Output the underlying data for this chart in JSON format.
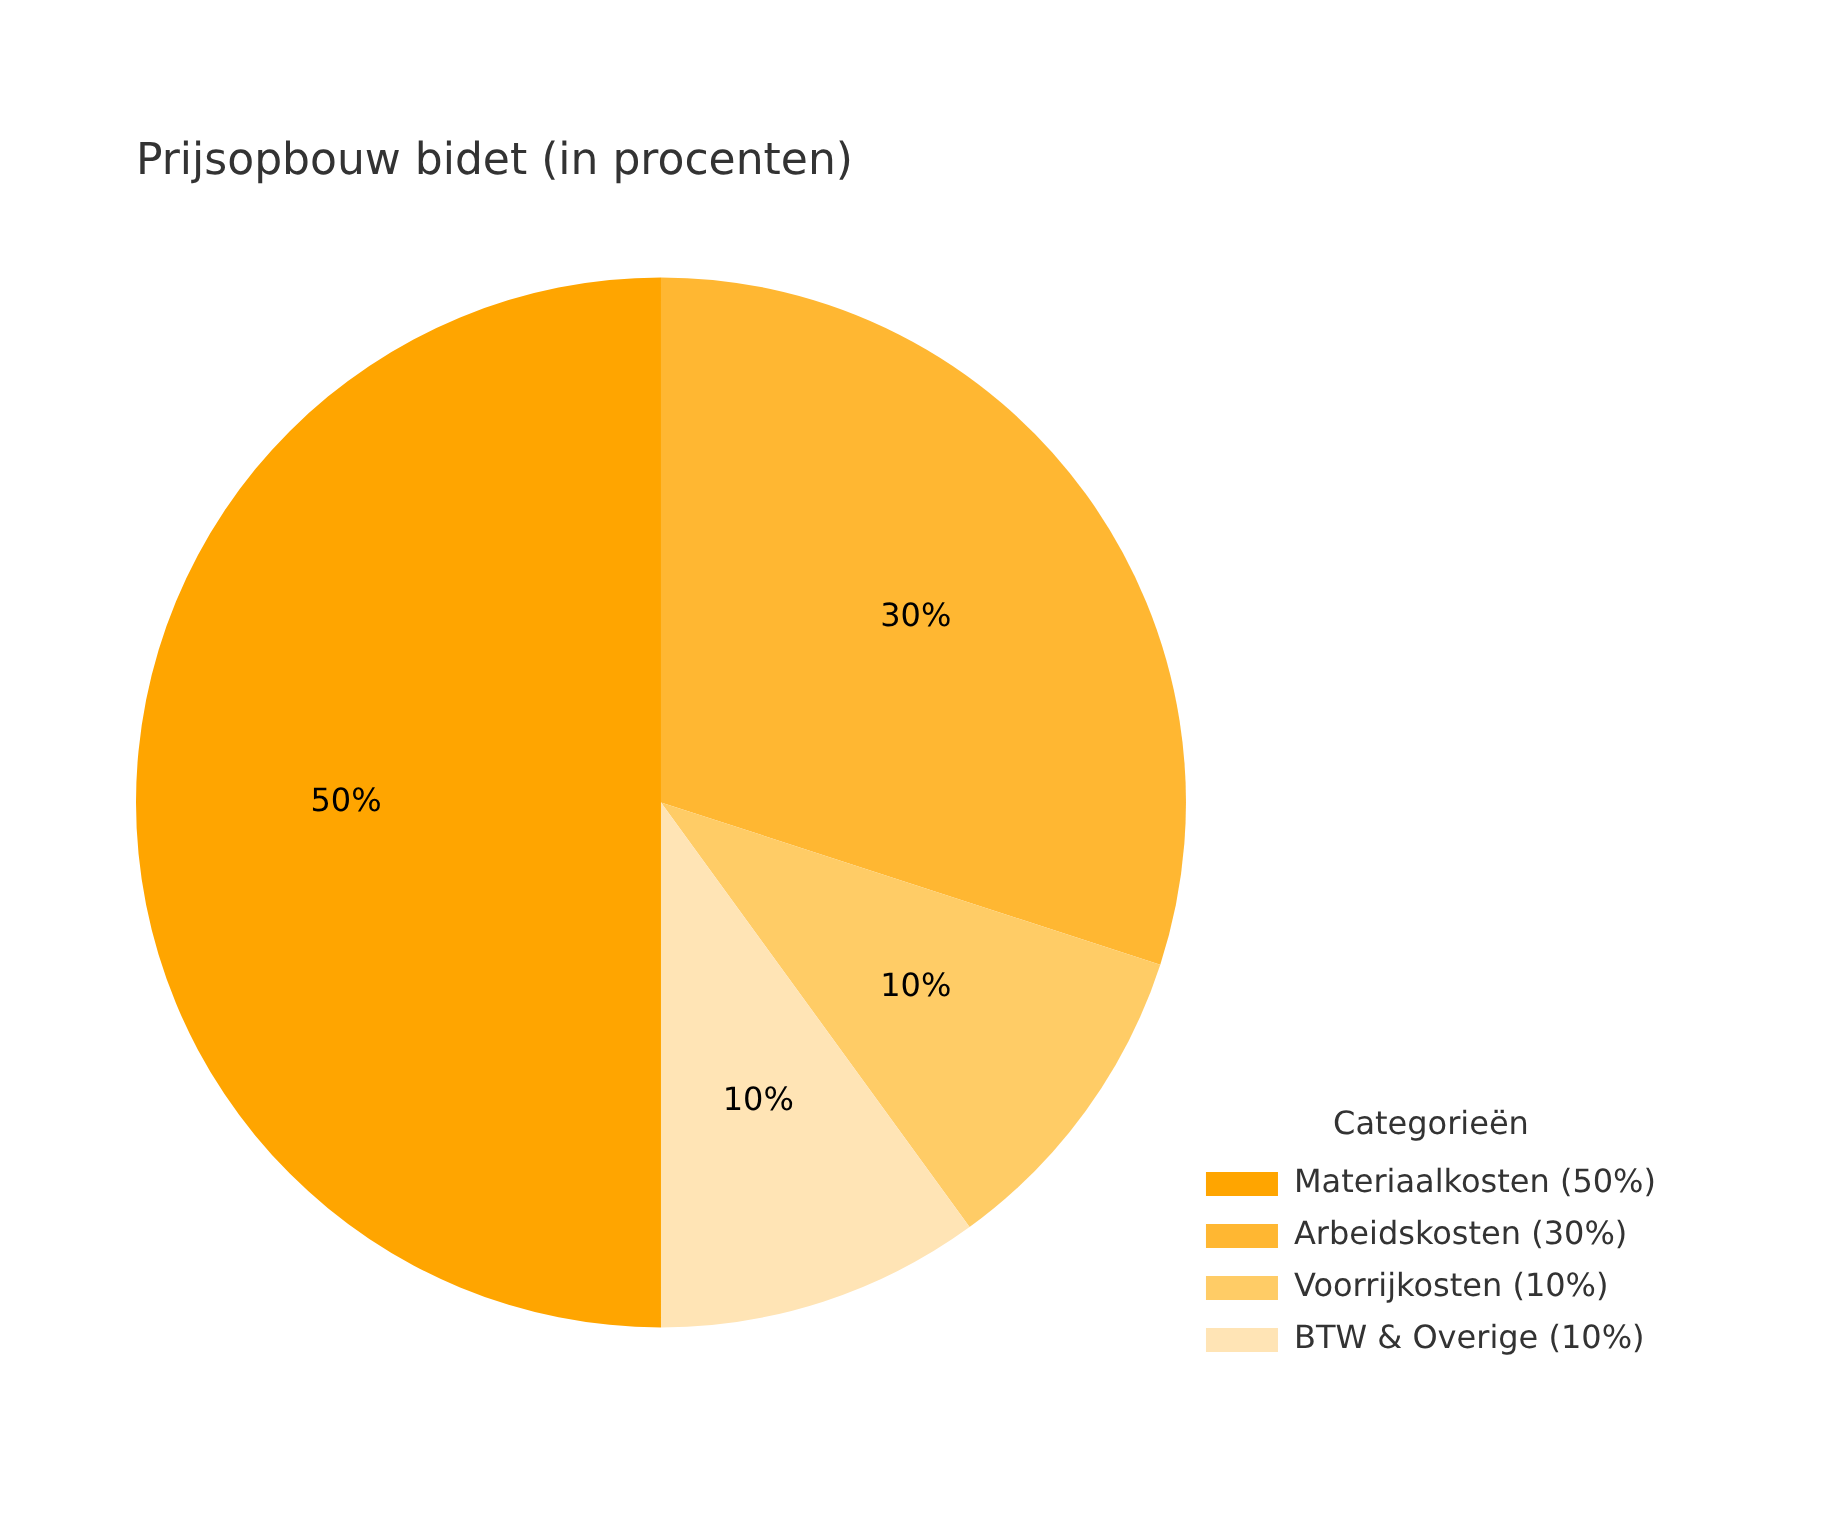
{
  "chart_data": {
    "type": "pie",
    "title": "Prijsopbouw bidet (in procenten)",
    "legend_title": "Categorieën",
    "legend": "bottom right",
    "categories": [
      "Materiaalkosten (50%)",
      "Arbeidskosten (30%)",
      "Voorrijkosten (10%)",
      "BTW & Overige (10%)"
    ],
    "values": [
      50,
      30,
      10,
      10
    ],
    "colors": [
      "#ffa500",
      "#ffb732",
      "#ffcc66",
      "#ffe4b5"
    ],
    "value_labels": [
      "50%",
      "30%",
      "10%",
      "10%"
    ]
  }
}
